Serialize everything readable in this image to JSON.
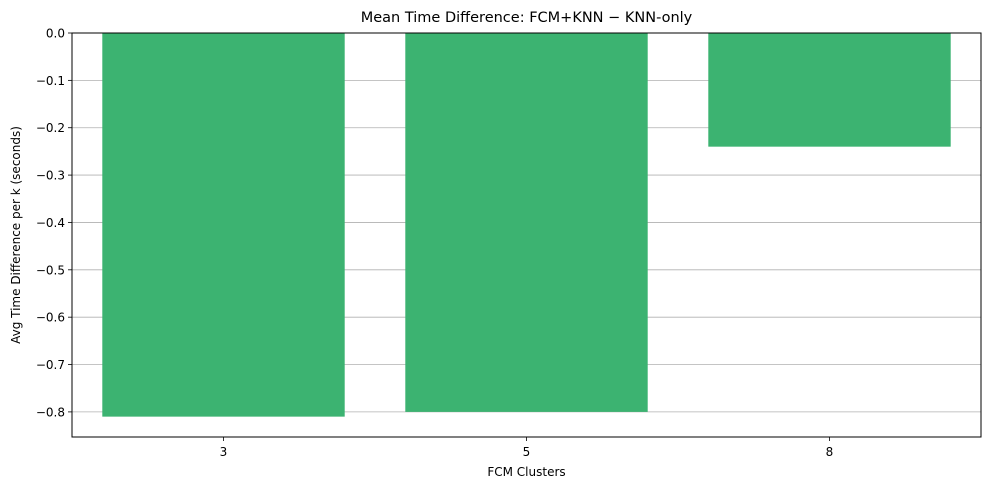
{
  "chart_data": {
    "type": "bar",
    "title": "Mean Time Difference: FCM+KNN − KNN-only",
    "xlabel": "FCM Clusters",
    "ylabel": "Avg Time Difference per k (seconds)",
    "categories": [
      "3",
      "5",
      "8"
    ],
    "values": [
      -0.81,
      -0.8,
      -0.24
    ],
    "ylim": [
      -0.853,
      0.0
    ],
    "yticks": [
      0.0,
      -0.1,
      -0.2,
      -0.3,
      -0.4,
      -0.5,
      -0.6,
      -0.7,
      -0.8
    ],
    "ytick_labels": [
      "0.0",
      "−0.1",
      "−0.2",
      "−0.3",
      "−0.4",
      "−0.5",
      "−0.6",
      "−0.7",
      "−0.8"
    ],
    "grid": "y-major",
    "bar_color": "#3cb371"
  }
}
